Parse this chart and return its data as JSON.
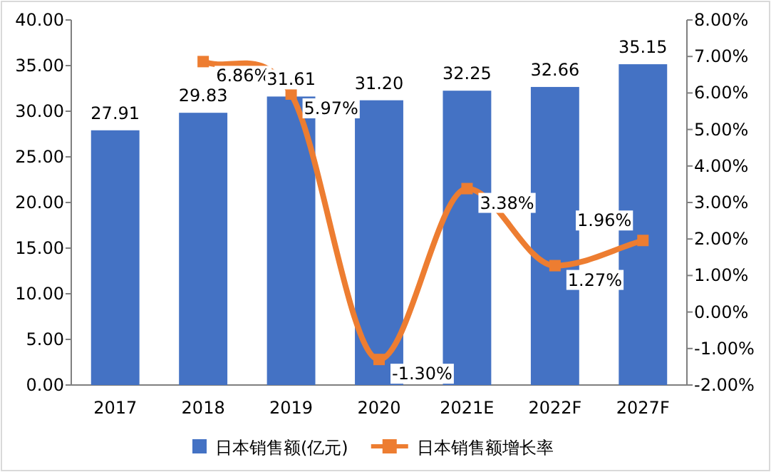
{
  "chart_data": {
    "type": "bar",
    "categories": [
      "2017",
      "2018",
      "2019",
      "2020",
      "2021E",
      "2022F",
      "2027F"
    ],
    "series": [
      {
        "name": "日本销售额(亿元)",
        "color": "#4472c4",
        "values": [
          27.91,
          29.83,
          31.61,
          31.2,
          32.25,
          32.66,
          35.15
        ],
        "value_labels": [
          "27.91",
          "29.83",
          "31.61",
          "31.20",
          "32.25",
          "32.66",
          "35.15"
        ]
      },
      {
        "name": "日本销售额增长率",
        "type": "line",
        "axis": "y2",
        "color": "#ed7d31",
        "marker": "square",
        "values": [
          null,
          6.86,
          5.97,
          -1.3,
          3.38,
          1.27,
          1.96
        ],
        "value_labels": [
          null,
          "6.86%",
          "5.97%",
          "-1.30%",
          "3.38%",
          "1.27%",
          "1.96%"
        ]
      }
    ],
    "ylim": [
      0,
      40
    ],
    "yticks": [
      {
        "value": 0,
        "label": "0.00"
      },
      {
        "value": 5,
        "label": "5.00"
      },
      {
        "value": 10,
        "label": "10.00"
      },
      {
        "value": 15,
        "label": "15.00"
      },
      {
        "value": 20,
        "label": "20.00"
      },
      {
        "value": 25,
        "label": "25.00"
      },
      {
        "value": 30,
        "label": "30.00"
      },
      {
        "value": 35,
        "label": "35.00"
      },
      {
        "value": 40,
        "label": "40.00"
      }
    ],
    "y2lim": [
      -2,
      8
    ],
    "y2ticks": [
      {
        "value": -2,
        "label": "-2.00%"
      },
      {
        "value": -1,
        "label": "-1.00%"
      },
      {
        "value": 0,
        "label": "0.00%"
      },
      {
        "value": 1,
        "label": "1.00%"
      },
      {
        "value": 2,
        "label": "2.00%"
      },
      {
        "value": 3,
        "label": "3.00%"
      },
      {
        "value": 4,
        "label": "4.00%"
      },
      {
        "value": 5,
        "label": "5.00%"
      },
      {
        "value": 6,
        "label": "6.00%"
      },
      {
        "value": 7,
        "label": "7.00%"
      },
      {
        "value": 8,
        "label": "8.00%"
      }
    ],
    "legend": "bottom"
  }
}
